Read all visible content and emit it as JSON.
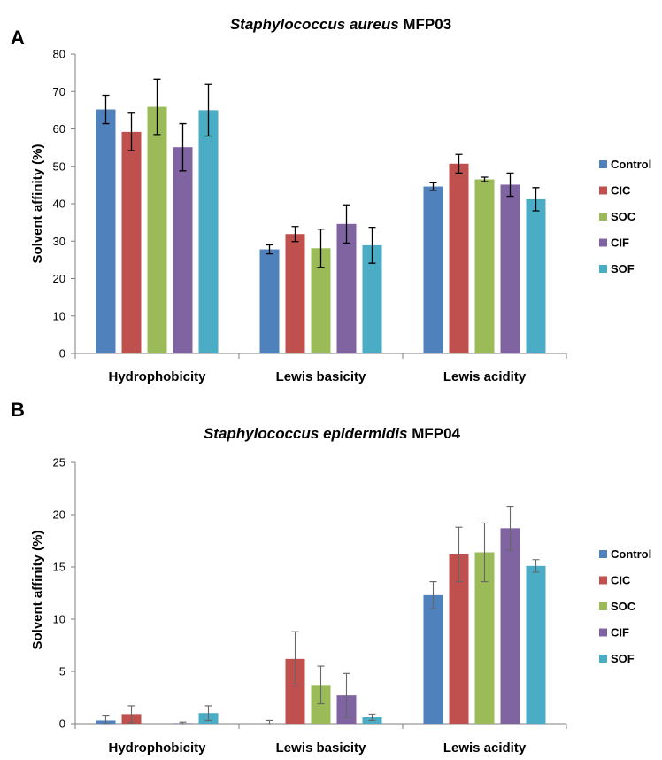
{
  "chart_data": [
    {
      "panel": "A",
      "type": "bar",
      "title_italic": "Staphylococcus aureus",
      "title_rest": " MFP03",
      "xlabel": "",
      "ylabel": "Solvent affinity (%)",
      "ylim": [
        0,
        80
      ],
      "yticks": [
        0,
        10,
        20,
        30,
        40,
        50,
        60,
        70,
        80
      ],
      "categories": [
        "Hydrophobicity",
        "Lewis basicity",
        "Lewis acidity"
      ],
      "legend_position": "right",
      "series": [
        {
          "name": "Control",
          "color": "#4f81bd",
          "values": [
            65.2,
            27.8,
            44.6
          ],
          "errors": [
            3.8,
            1.2,
            1.0
          ]
        },
        {
          "name": "CIC",
          "color": "#c0504d",
          "values": [
            59.2,
            31.9,
            50.7
          ],
          "errors": [
            5.0,
            2.0,
            2.5
          ]
        },
        {
          "name": "SOC",
          "color": "#9bbb59",
          "values": [
            65.9,
            28.1,
            46.5
          ],
          "errors": [
            7.4,
            5.1,
            0.6
          ]
        },
        {
          "name": "CIF",
          "color": "#8064a2",
          "values": [
            55.1,
            34.6,
            45.1
          ],
          "errors": [
            6.3,
            5.1,
            3.1
          ]
        },
        {
          "name": "SOF",
          "color": "#4bacc6",
          "values": [
            65.0,
            28.9,
            41.2
          ],
          "errors": [
            6.9,
            4.8,
            3.1
          ]
        }
      ]
    },
    {
      "panel": "B",
      "type": "bar",
      "title_italic": "Staphylococcus epidermidis",
      "title_rest": " MFP04",
      "xlabel": "",
      "ylabel": "Solvent affinity (%)",
      "ylim": [
        0,
        25
      ],
      "yticks": [
        0,
        5,
        10,
        15,
        20,
        25
      ],
      "categories": [
        "Hydrophobicity",
        "Lewis basicity",
        "Lewis acidity"
      ],
      "legend_position": "right",
      "series": [
        {
          "name": "Control",
          "color": "#4f81bd",
          "values": [
            0.3,
            0.0,
            12.3
          ],
          "errors": [
            0.5,
            0.3,
            1.3
          ]
        },
        {
          "name": "CIC",
          "color": "#c0504d",
          "values": [
            0.9,
            6.2,
            16.2
          ],
          "errors": [
            0.8,
            2.6,
            2.6
          ]
        },
        {
          "name": "SOC",
          "color": "#9bbb59",
          "values": [
            0.0,
            3.7,
            16.4
          ],
          "errors": [
            0.0,
            1.8,
            2.8
          ]
        },
        {
          "name": "CIF",
          "color": "#8064a2",
          "values": [
            0.05,
            2.7,
            18.7
          ],
          "errors": [
            0.1,
            2.1,
            2.1
          ]
        },
        {
          "name": "SOF",
          "color": "#4bacc6",
          "values": [
            1.0,
            0.6,
            15.1
          ],
          "errors": [
            0.7,
            0.3,
            0.6
          ]
        }
      ]
    }
  ]
}
